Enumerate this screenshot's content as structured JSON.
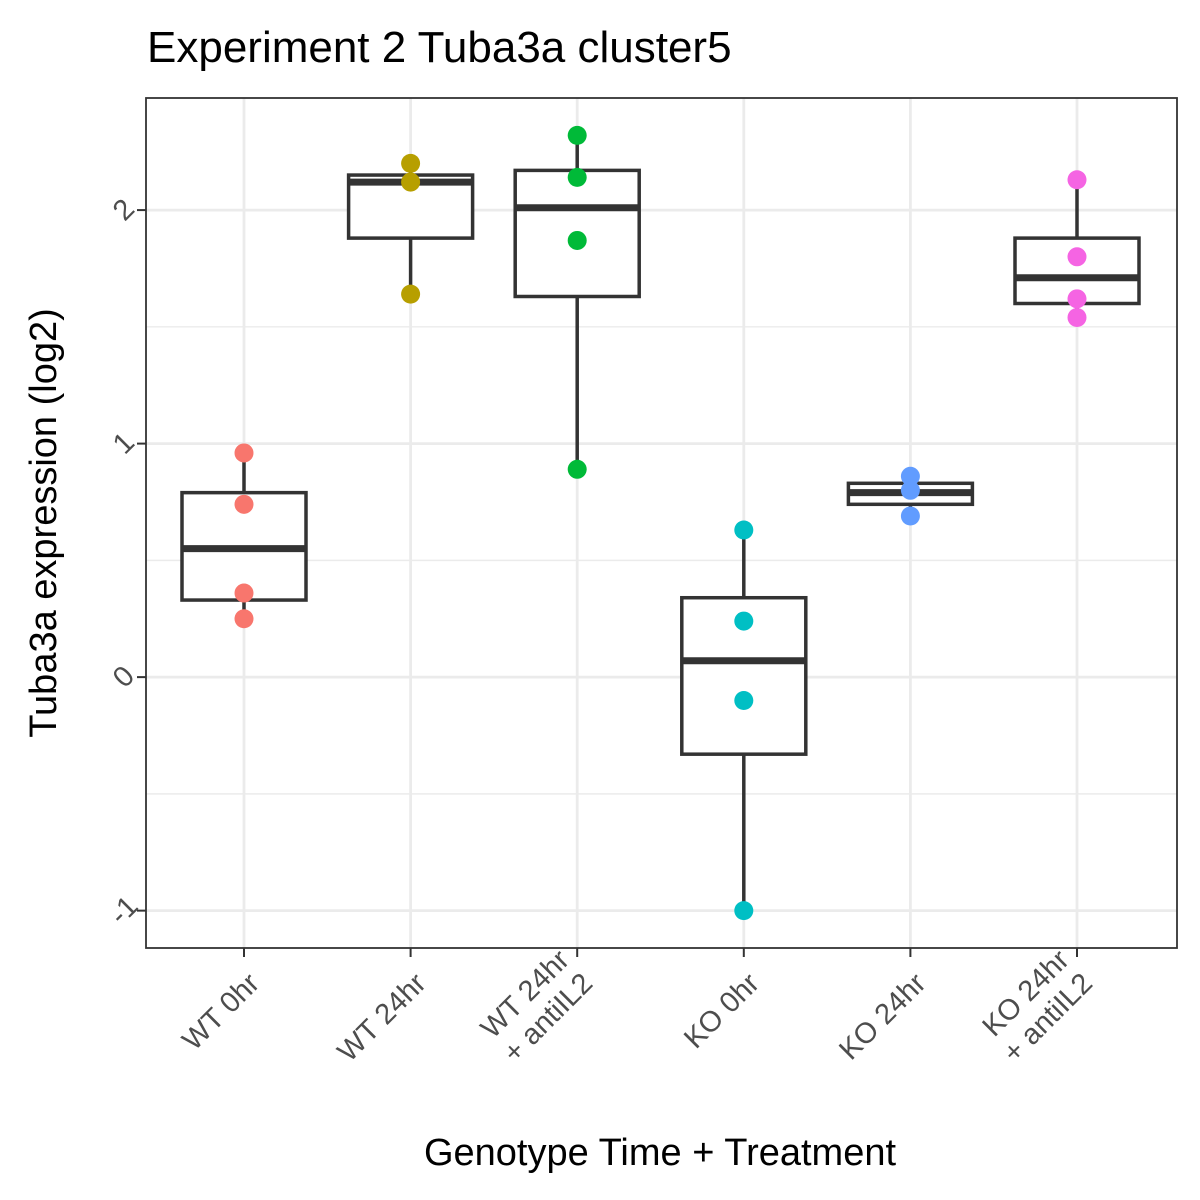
{
  "chart_data": {
    "type": "boxplot",
    "title": "Experiment 2 Tuba3a cluster5",
    "xlabel": "Genotype Time + Treatment",
    "ylabel": "Tuba3a expression (log2)",
    "ylim": [
      -1.16,
      2.48
    ],
    "yticks": [
      -1,
      0,
      1,
      2
    ],
    "ytick_labels": [
      "-1",
      "0",
      "1",
      "2"
    ],
    "grid": true,
    "categories": [
      {
        "lines": [
          "WT 0hr"
        ]
      },
      {
        "lines": [
          "WT 24hr"
        ]
      },
      {
        "lines": [
          "WT 24hr",
          "+ antiIL2"
        ]
      },
      {
        "lines": [
          "KO 0hr"
        ]
      },
      {
        "lines": [
          "KO 24hr"
        ]
      },
      {
        "lines": [
          "KO 24hr",
          "+ antiIL2"
        ]
      }
    ],
    "groups": [
      {
        "color": "#F8766D",
        "q1": 0.33,
        "median": 0.55,
        "q3": 0.79,
        "whisker_low": 0.25,
        "whisker_high": 0.96,
        "points": [
          0.96,
          0.74,
          0.36,
          0.25
        ]
      },
      {
        "color": "#B79F00",
        "q1": 1.88,
        "median": 2.12,
        "q3": 2.15,
        "whisker_low": 1.64,
        "whisker_high": 2.2,
        "points": [
          2.2,
          2.12,
          1.64
        ]
      },
      {
        "color": "#00BA38",
        "q1": 1.63,
        "median": 2.01,
        "q3": 2.17,
        "whisker_low": 0.89,
        "whisker_high": 2.32,
        "points": [
          2.32,
          2.14,
          1.87,
          0.89
        ]
      },
      {
        "color": "#00BFC4",
        "q1": -0.33,
        "median": 0.07,
        "q3": 0.34,
        "whisker_low": -1.0,
        "whisker_high": 0.63,
        "points": [
          0.63,
          0.24,
          -0.1,
          -1.0
        ]
      },
      {
        "color": "#619CFF",
        "q1": 0.74,
        "median": 0.79,
        "q3": 0.83,
        "whisker_low": 0.69,
        "whisker_high": 0.86,
        "points": [
          0.86,
          0.8,
          0.69
        ]
      },
      {
        "color": "#F564E3",
        "q1": 1.6,
        "median": 1.71,
        "q3": 1.88,
        "whisker_low": 1.54,
        "whisker_high": 2.13,
        "points": [
          2.13,
          1.8,
          1.62,
          1.54
        ]
      }
    ]
  }
}
